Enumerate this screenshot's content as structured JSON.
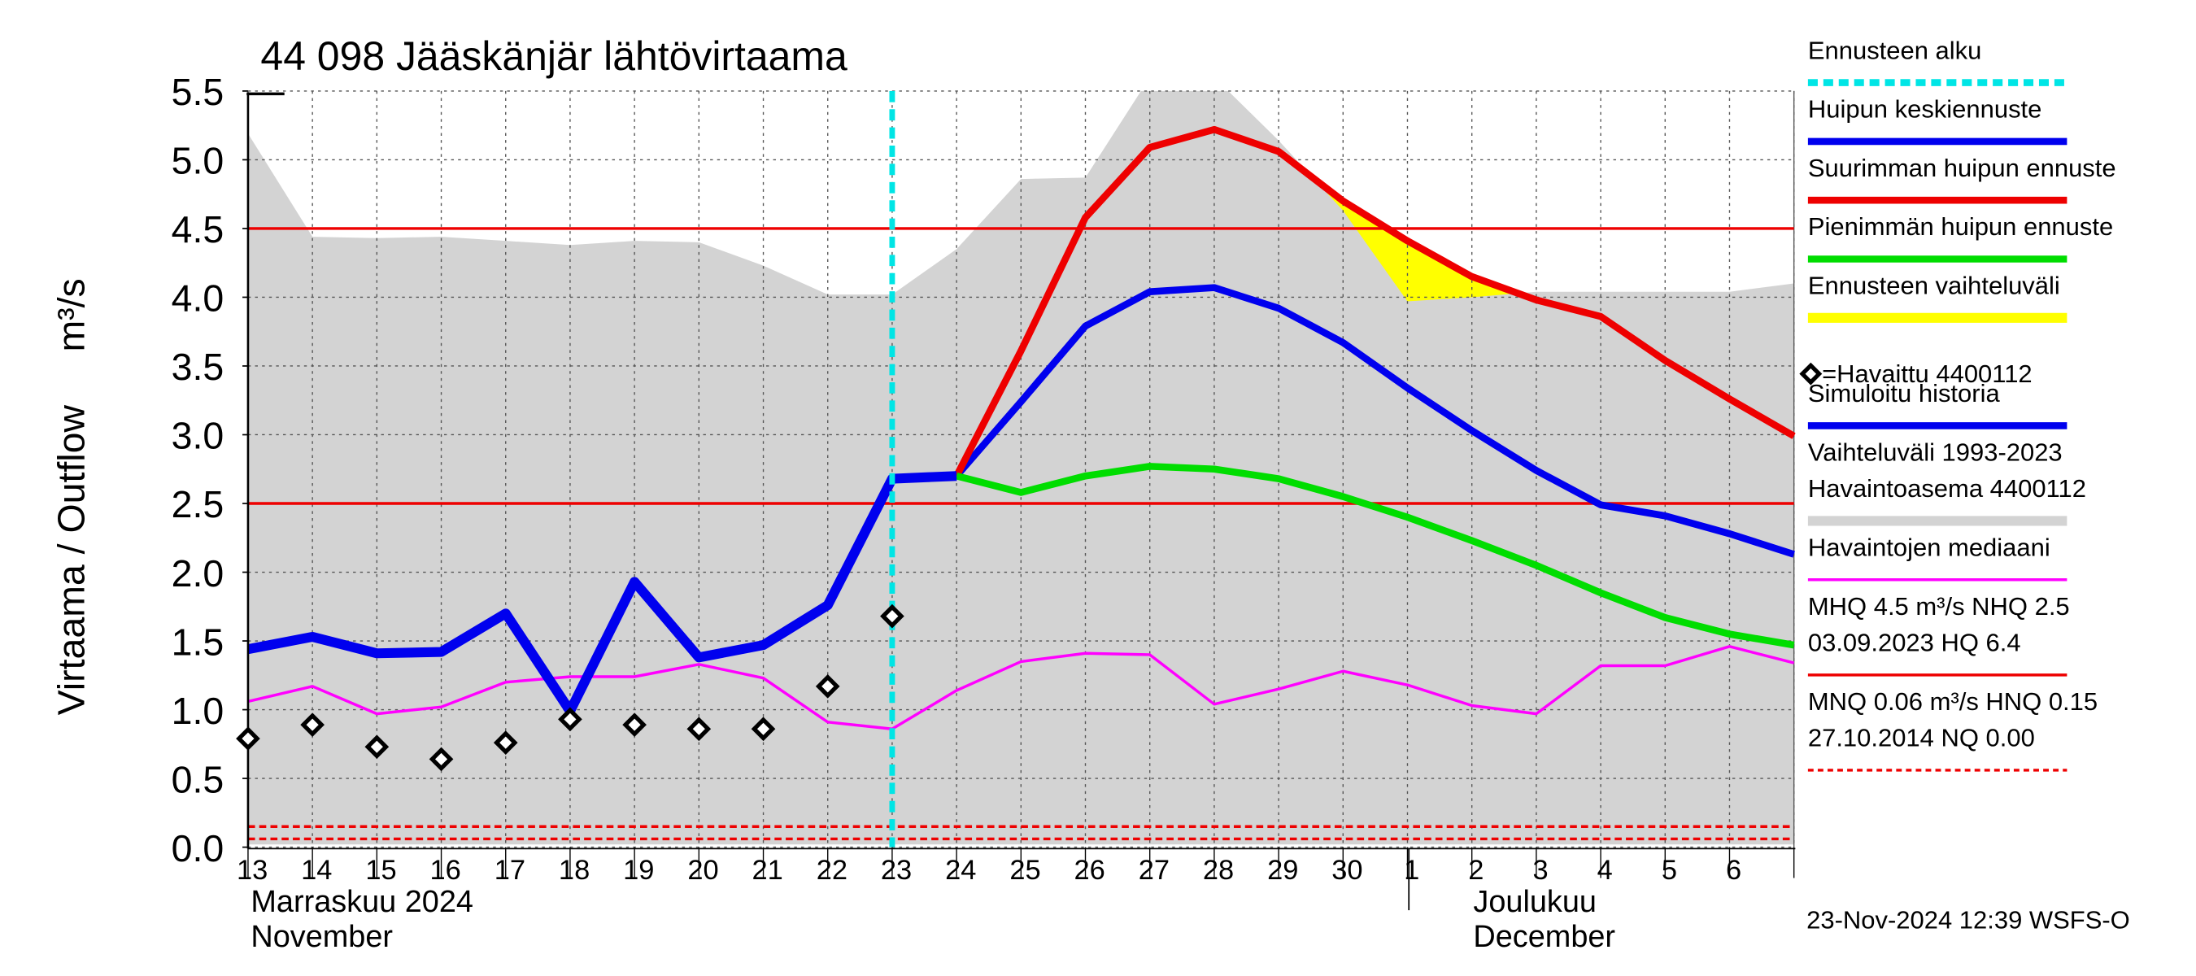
{
  "chart_data": {
    "type": "line",
    "title": "44 098 Jääskänjär lähtövirtaama",
    "y_label": "Virtaama / Outflow",
    "y_unit": "m³/s",
    "categories": [
      "13",
      "14",
      "15",
      "16",
      "17",
      "18",
      "19",
      "20",
      "21",
      "22",
      "23",
      "24",
      "25",
      "26",
      "27",
      "28",
      "29",
      "30",
      "1",
      "2",
      "3",
      "4",
      "5",
      "6",
      null
    ],
    "month_labels": [
      [
        "Marraskuu 2024",
        "November"
      ],
      [
        "Joulukuu",
        "December"
      ]
    ],
    "timestamp": "23-Nov-2024 12:39 WSFS-O",
    "ylim": [
      0,
      5.5
    ],
    "yticks": [
      {
        "value": 0,
        "label": "0.0"
      },
      0.5,
      {
        "value": 1,
        "label": "1.0"
      },
      1.5,
      {
        "value": 2,
        "label": "2.0"
      },
      2.5,
      {
        "value": 3,
        "label": "3.0"
      },
      3.5,
      {
        "value": 4,
        "label": "4.0"
      },
      4.5,
      {
        "value": 5,
        "label": "5.0"
      },
      5.5
    ],
    "grid": true,
    "forecast_start": {
      "name": "Ennusteen alku",
      "color": "#00e5e5",
      "at": "23"
    },
    "series": [
      {
        "kind": "line",
        "name": "Huipun keskiennuste",
        "color": "#0000ee",
        "width": 5,
        "values": [
          null,
          null,
          null,
          null,
          null,
          null,
          null,
          null,
          null,
          null,
          null,
          2.7,
          3.24,
          3.79,
          4.04,
          4.07,
          3.92,
          3.67,
          3.34,
          3.03,
          2.74,
          2.49,
          2.41,
          2.28,
          2.13
        ]
      },
      {
        "kind": "line",
        "name": "Suurimman huipun ennuste",
        "color": "#ee0000",
        "width": 5,
        "values": [
          null,
          null,
          null,
          null,
          null,
          null,
          null,
          null,
          null,
          null,
          null,
          2.7,
          3.61,
          4.58,
          5.09,
          5.22,
          5.06,
          4.7,
          4.41,
          4.15,
          3.98,
          3.86,
          3.54,
          3.26,
          2.99
        ]
      },
      {
        "kind": "line",
        "name": "Pienimmän huipun ennuste",
        "color": "#00dd00",
        "width": 5,
        "values": [
          null,
          null,
          null,
          null,
          null,
          null,
          null,
          null,
          null,
          null,
          null,
          2.7,
          2.58,
          2.7,
          2.77,
          2.75,
          2.68,
          2.55,
          2.4,
          2.23,
          2.05,
          1.85,
          1.67,
          1.55,
          1.47
        ]
      },
      {
        "kind": "band",
        "name": "Ennusteen vaihteluväli",
        "color": "#ffff00",
        "high": [
          null,
          null,
          null,
          null,
          null,
          null,
          null,
          null,
          null,
          null,
          null,
          2.7,
          3.61,
          4.58,
          5.09,
          5.22,
          5.06,
          4.7,
          4.41,
          4.15,
          3.98,
          3.86,
          3.65,
          3.53,
          3.35
        ],
        "low": [
          null,
          null,
          null,
          null,
          null,
          null,
          null,
          null,
          null,
          null,
          null,
          2.7,
          2.58,
          2.7,
          2.77,
          2.75,
          2.68,
          2.55,
          2.4,
          2.23,
          2.05,
          1.85,
          1.67,
          1.55,
          1.47
        ]
      },
      {
        "kind": "markers",
        "name": "=Havaittu 4400112",
        "color": "#000000",
        "values": [
          0.79,
          0.89,
          0.73,
          0.64,
          0.76,
          0.93,
          0.89,
          0.86,
          0.86,
          1.17,
          1.68,
          null,
          null,
          null,
          null,
          null,
          null,
          null,
          null,
          null,
          null,
          null,
          null,
          null,
          null
        ]
      },
      {
        "kind": "line",
        "name": "Simuloitu historia",
        "color": "#0000ee",
        "width": 7,
        "values": [
          1.44,
          1.53,
          1.41,
          1.42,
          1.7,
          0.99,
          1.93,
          1.38,
          1.47,
          1.76,
          2.68,
          2.7,
          null,
          null,
          null,
          null,
          null,
          null,
          null,
          null,
          null,
          null,
          null,
          null,
          null
        ]
      },
      {
        "kind": "band",
        "name": [
          "Vaihteluväli 1993-2023",
          " Havaintoasema 4400112"
        ],
        "color": "#d3d3d3",
        "high": [
          5.19,
          4.44,
          4.43,
          4.44,
          4.41,
          4.38,
          4.41,
          4.4,
          4.23,
          4.02,
          4.02,
          4.35,
          4.86,
          4.87,
          5.6,
          5.6,
          5.14,
          4.63,
          3.97,
          4.0,
          4.04,
          4.04,
          4.04,
          4.04,
          4.1
        ],
        "low": [
          0.02,
          0.02,
          0.02,
          0.02,
          0.02,
          0.02,
          0.02,
          0.02,
          0.02,
          0.02,
          0.02,
          0.02,
          0.02,
          0.02,
          0.02,
          0.02,
          0.02,
          0.02,
          0.02,
          0.02,
          0.02,
          0.02,
          0.02,
          0.02,
          0.02
        ]
      },
      {
        "kind": "line",
        "name": "Havaintojen mediaani",
        "color": "#ff00ff",
        "width": 2,
        "values": [
          1.06,
          1.17,
          0.97,
          1.02,
          1.2,
          1.24,
          1.24,
          1.33,
          1.23,
          0.91,
          0.86,
          1.14,
          1.35,
          1.41,
          1.4,
          1.04,
          1.15,
          1.28,
          1.18,
          1.03,
          0.97,
          1.32,
          1.32,
          1.46,
          1.34
        ]
      }
    ],
    "reference_lines": [
      {
        "name": [
          "MHQ  4.5 m³/s NHQ  2.5",
          "03.09.2023 HQ  6.4"
        ],
        "color": "#ee0000",
        "dashed": false,
        "values": [
          4.5,
          2.5
        ]
      },
      {
        "name": [
          "MNQ 0.06 m³/s HNQ 0.15",
          "27.10.2014 NQ 0.00"
        ],
        "color": "#ee0000",
        "dashed": true,
        "values": [
          0.06,
          0.15
        ]
      }
    ]
  }
}
